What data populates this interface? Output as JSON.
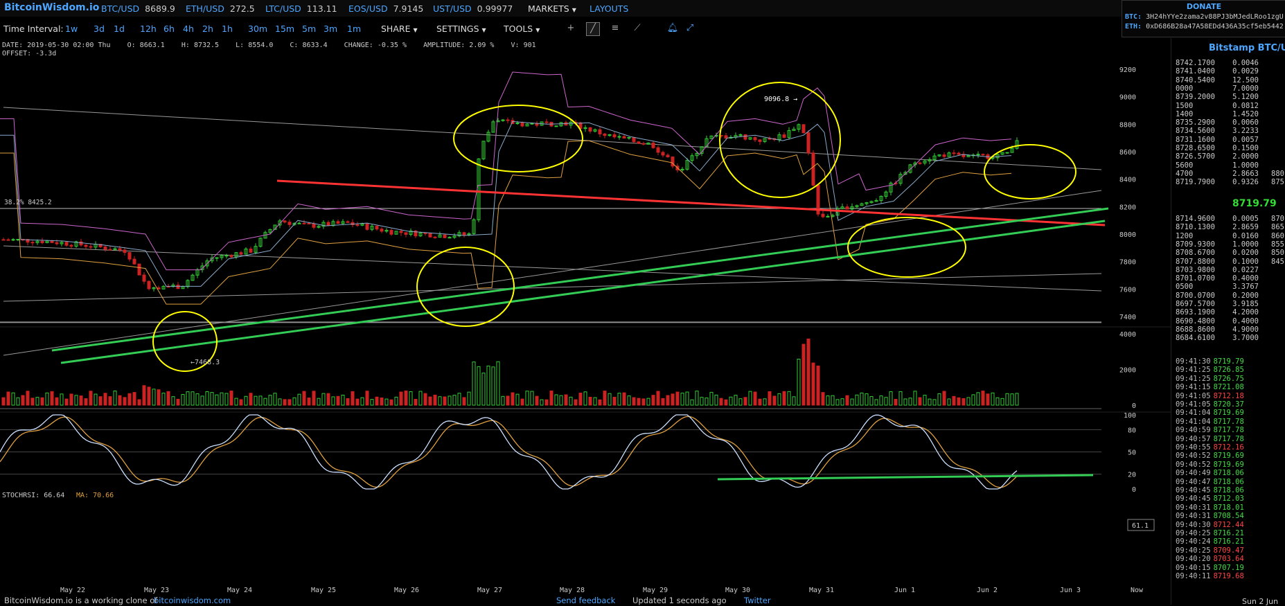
{
  "topbar": {
    "logo": "BitcoinWisdom.io",
    "tickers": [
      {
        "pair": "BTC/USD",
        "price": "8689.9"
      },
      {
        "pair": "ETH/USD",
        "price": "272.5"
      },
      {
        "pair": "LTC/USD",
        "price": "113.11"
      },
      {
        "pair": "EOS/USD",
        "price": "7.9145"
      },
      {
        "pair": "UST/USD",
        "price": "0.99977"
      }
    ],
    "markets": "MARKETS",
    "layouts": "LAYOUTS"
  },
  "donate": {
    "title": "DONATE",
    "btc_label": "BTC:",
    "btc_addr": "3H24hYYe2zama2v88PJ3bMJedLRoo1zgU",
    "eth_label": "ETH:",
    "eth_addr": "0xD686B28a47A58EDd436A35cf5eb5442"
  },
  "toolbar": {
    "time_interval_label": "Time Interval:",
    "intervals": [
      "1w",
      "3d",
      "1d",
      "12h",
      "6h",
      "4h",
      "2h",
      "1h",
      "30m",
      "15m",
      "5m",
      "3m",
      "1m"
    ],
    "share": "SHARE",
    "settings": "SETTINGS",
    "tools": "TOOLS"
  },
  "ohlc": {
    "line": "DATE: 2019-05-30 02:00 Thu    O: 8663.1    H: 8732.5    L: 8554.0    C: 8633.4    CHANGE: -0.35 %    AMPLITUDE: 2.09 %    V: 901",
    "offset": "OFFSET: -3.3d"
  },
  "chart_labels": {
    "fib": "38.2% 8425.2",
    "high": "9096.8 →",
    "low": "←7468.3",
    "stoch_label": "STOCHRSI: 66.64",
    "ma_label": "MA: 70.66",
    "stoch_value": "61.1"
  },
  "chart_data": {
    "type": "line",
    "price_axis": [
      "9200",
      "9000",
      "8800",
      "8600",
      "8400",
      "8200",
      "8000",
      "7800",
      "7600",
      "7400"
    ],
    "volume_axis": [
      "4000",
      "2000",
      "0"
    ],
    "stoch_axis": [
      "100",
      "80",
      "50",
      "20",
      "0"
    ],
    "x_labels": [
      "May 22",
      "May 23",
      "May 24",
      "May 25",
      "May 26",
      "May 27",
      "May 28",
      "May 29",
      "May 30",
      "May 31",
      "Jun 1",
      "Jun 2",
      "Jun 3",
      "Now"
    ]
  },
  "orderbook": {
    "title": "Bitstamp BTC/U",
    "asks": [
      {
        "price": "8742.1700",
        "vol": "0.0046"
      },
      {
        "price": "8741.0400",
        "vol": "0.0029"
      },
      {
        "price": "8740.5400",
        "vol": "12.500"
      },
      {
        "price": "0000",
        "vol": "7.0000"
      },
      {
        "price": "8739.2000",
        "vol": "5.1200"
      },
      {
        "price": "1500",
        "vol": "0.0812"
      },
      {
        "price": "1400",
        "vol": "1.4520"
      },
      {
        "price": "8735.2900",
        "vol": "0.0060"
      },
      {
        "price": "8734.5600",
        "vol": "3.2233"
      },
      {
        "price": "8731.1600",
        "vol": "0.0057"
      },
      {
        "price": "8728.6500",
        "vol": "0.1500"
      },
      {
        "price": "8726.5700",
        "vol": "2.0000"
      },
      {
        "price": "5600",
        "vol": "1.0000"
      },
      {
        "price": "4700",
        "vol": "2.8663",
        "cum": "880"
      },
      {
        "price": "8719.7900",
        "vol": "0.9326",
        "cum": "875"
      }
    ],
    "last": "8719.79",
    "bids": [
      {
        "price": "8714.9600",
        "vol": "0.0005",
        "cum": "870"
      },
      {
        "price": "8710.1300",
        "vol": "2.8659",
        "cum": "865"
      },
      {
        "price": "1200",
        "vol": "0.0160",
        "cum": "860"
      },
      {
        "price": "8709.9300",
        "vol": "1.0000",
        "cum": "855"
      },
      {
        "price": "8708.6700",
        "vol": "0.0200",
        "cum": "850"
      },
      {
        "price": "8707.8800",
        "vol": "0.1000",
        "cum": "845"
      },
      {
        "price": "8703.9800",
        "vol": "0.0227"
      },
      {
        "price": "8701.0700",
        "vol": "0.4000"
      },
      {
        "price": "0500",
        "vol": "3.3767"
      },
      {
        "price": "8700.0700",
        "vol": "0.2000"
      },
      {
        "price": "8697.5700",
        "vol": "3.9185"
      },
      {
        "price": "8693.1900",
        "vol": "4.2000"
      },
      {
        "price": "8690.4800",
        "vol": "0.4000"
      },
      {
        "price": "8688.8600",
        "vol": "4.9000"
      },
      {
        "price": "8684.6100",
        "vol": "3.7000"
      }
    ]
  },
  "trades": [
    {
      "time": "09:41:30",
      "price": "8719.79",
      "dir": "up"
    },
    {
      "time": "09:41:25",
      "price": "8726.85",
      "dir": "up"
    },
    {
      "time": "09:41:25",
      "price": "8726.75",
      "dir": "up"
    },
    {
      "time": "09:41:15",
      "price": "8721.08",
      "dir": "up"
    },
    {
      "time": "09:41:05",
      "price": "8712.18",
      "dir": "down"
    },
    {
      "time": "09:41:05",
      "price": "8720.37",
      "dir": "up"
    },
    {
      "time": "09:41:04",
      "price": "8719.69",
      "dir": "up"
    },
    {
      "time": "09:41:04",
      "price": "8717.78",
      "dir": "up"
    },
    {
      "time": "09:40:59",
      "price": "8717.78",
      "dir": "up"
    },
    {
      "time": "09:40:57",
      "price": "8717.78",
      "dir": "up"
    },
    {
      "time": "09:40:55",
      "price": "8712.16",
      "dir": "down"
    },
    {
      "time": "09:40:52",
      "price": "8719.69",
      "dir": "up"
    },
    {
      "time": "09:40:52",
      "price": "8719.69",
      "dir": "up"
    },
    {
      "time": "09:40:49",
      "price": "8718.06",
      "dir": "up"
    },
    {
      "time": "09:40:47",
      "price": "8718.06",
      "dir": "up"
    },
    {
      "time": "09:40:45",
      "price": "8718.06",
      "dir": "up"
    },
    {
      "time": "09:40:45",
      "price": "8712.03",
      "dir": "up"
    },
    {
      "time": "09:40:31",
      "price": "8718.01",
      "dir": "up"
    },
    {
      "time": "09:40:31",
      "price": "8708.54",
      "dir": "up"
    },
    {
      "time": "09:40:30",
      "price": "8712.44",
      "dir": "down"
    },
    {
      "time": "09:40:25",
      "price": "8716.21",
      "dir": "up"
    },
    {
      "time": "09:40:24",
      "price": "8716.21",
      "dir": "up"
    },
    {
      "time": "09:40:25",
      "price": "8709.47",
      "dir": "down"
    },
    {
      "time": "09:40:20",
      "price": "8703.64",
      "dir": "down"
    },
    {
      "time": "09:40:15",
      "price": "8707.19",
      "dir": "up"
    },
    {
      "time": "09:40:11",
      "price": "8719.68",
      "dir": "down"
    }
  ],
  "footer": {
    "text": "BitcoinWisdom.io is a working clone of",
    "link": "bitcoinwisdom.com",
    "feedback": "Send feedback",
    "updated": "Updated 1 seconds ago",
    "twitter": "Twitter",
    "date": "Sun 2 Jun"
  },
  "colors": {
    "up": "#33cc33",
    "down": "#cc2222",
    "accent": "#4da6ff",
    "annotation": "#ffff00",
    "trend_red": "#ff3333",
    "trend_green": "#33cc55"
  }
}
